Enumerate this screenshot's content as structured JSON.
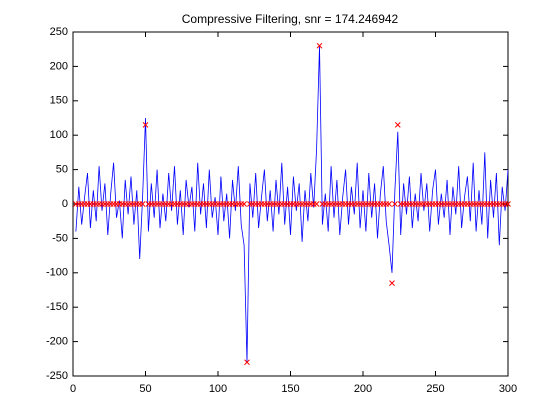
{
  "chart_data": {
    "type": "line",
    "title": "Compressive Filtering, snr = 174.246942",
    "x": [
      2,
      4,
      6,
      8,
      10,
      12,
      14,
      16,
      18,
      20,
      22,
      24,
      26,
      28,
      30,
      32,
      34,
      36,
      38,
      40,
      42,
      44,
      46,
      48,
      50,
      52,
      54,
      56,
      58,
      60,
      62,
      64,
      66,
      68,
      70,
      72,
      74,
      76,
      78,
      80,
      82,
      84,
      86,
      88,
      90,
      92,
      94,
      96,
      98,
      100,
      102,
      104,
      106,
      108,
      110,
      112,
      114,
      116,
      118,
      120,
      122,
      124,
      126,
      128,
      130,
      132,
      134,
      136,
      138,
      140,
      142,
      144,
      146,
      148,
      150,
      152,
      154,
      156,
      158,
      160,
      162,
      164,
      166,
      168,
      170,
      172,
      174,
      176,
      178,
      180,
      182,
      184,
      186,
      188,
      190,
      192,
      194,
      196,
      198,
      200,
      202,
      204,
      206,
      208,
      210,
      212,
      214,
      216,
      218,
      220,
      222,
      224,
      226,
      228,
      230,
      232,
      234,
      236,
      238,
      240,
      242,
      244,
      246,
      248,
      250,
      252,
      254,
      256,
      258,
      260,
      262,
      264,
      266,
      268,
      270,
      272,
      274,
      276,
      278,
      280,
      282,
      284,
      286,
      288,
      290,
      292,
      294,
      296,
      298,
      300
    ],
    "series": [
      {
        "color": "#0000ff",
        "marker": "none",
        "values": [
          -40,
          25,
          -30,
          10,
          45,
          -35,
          20,
          -25,
          55,
          -10,
          30,
          -45,
          15,
          60,
          -20,
          5,
          -50,
          35,
          -15,
          40,
          -30,
          20,
          -80,
          10,
          125,
          -40,
          30,
          -20,
          50,
          -35,
          15,
          -25,
          45,
          -10,
          55,
          -30,
          20,
          -45,
          35,
          -5,
          25,
          -40,
          60,
          -15,
          30,
          -35,
          50,
          -20,
          10,
          -45,
          40,
          -25,
          15,
          -50,
          35,
          -10,
          55,
          -30,
          -60,
          -230,
          30,
          -20,
          45,
          -35,
          10,
          50,
          -25,
          20,
          -40,
          35,
          -15,
          60,
          -30,
          25,
          -45,
          40,
          -10,
          30,
          -55,
          20,
          -25,
          45,
          -5,
          80,
          230,
          -30,
          15,
          -40,
          55,
          -20,
          35,
          -45,
          10,
          50,
          -30,
          25,
          -15,
          60,
          -35,
          20,
          -40,
          45,
          -20,
          30,
          -50,
          15,
          55,
          -25,
          -60,
          -100,
          20,
          105,
          -45,
          30,
          -15,
          40,
          -35,
          15,
          -25,
          45,
          -10,
          30,
          -40,
          20,
          50,
          -30,
          15,
          -20,
          35,
          -45,
          25,
          -15,
          55,
          -35,
          10,
          40,
          -25,
          60,
          -40,
          20,
          -30,
          75,
          -50,
          35,
          -20,
          45,
          -60,
          25,
          -10,
          50
        ]
      },
      {
        "color": "#ff0000",
        "marker": "x",
        "values": [
          0,
          0,
          0,
          0,
          0,
          0,
          0,
          0,
          0,
          0,
          0,
          0,
          0,
          0,
          0,
          0,
          0,
          0,
          0,
          0,
          0,
          0,
          0,
          0,
          115,
          0,
          0,
          0,
          0,
          0,
          0,
          0,
          0,
          0,
          0,
          0,
          0,
          0,
          0,
          0,
          0,
          0,
          0,
          0,
          0,
          0,
          0,
          0,
          0,
          0,
          0,
          0,
          0,
          0,
          0,
          0,
          0,
          0,
          0,
          -230,
          0,
          0,
          0,
          0,
          0,
          0,
          0,
          0,
          0,
          0,
          0,
          0,
          0,
          0,
          0,
          0,
          0,
          0,
          0,
          0,
          0,
          0,
          0,
          0,
          230,
          0,
          0,
          0,
          0,
          0,
          0,
          0,
          0,
          0,
          0,
          0,
          0,
          0,
          0,
          0,
          0,
          0,
          0,
          0,
          0,
          0,
          0,
          0,
          0,
          -115,
          0,
          115,
          0,
          0,
          0,
          0,
          0,
          0,
          0,
          0,
          0,
          0,
          0,
          0,
          0,
          0,
          0,
          0,
          0,
          0,
          0,
          0,
          0,
          0,
          0,
          0,
          0,
          0,
          0,
          0,
          0,
          0,
          0,
          0,
          0,
          0,
          0,
          0,
          0,
          0
        ]
      }
    ],
    "xlim": [
      0,
      300
    ],
    "xticks": [
      0,
      50,
      100,
      150,
      200,
      250,
      300
    ],
    "ylim": [
      -250,
      250
    ],
    "yticks": [
      -250,
      -200,
      -150,
      -100,
      -50,
      0,
      50,
      100,
      150,
      200,
      250
    ],
    "grid": false
  }
}
